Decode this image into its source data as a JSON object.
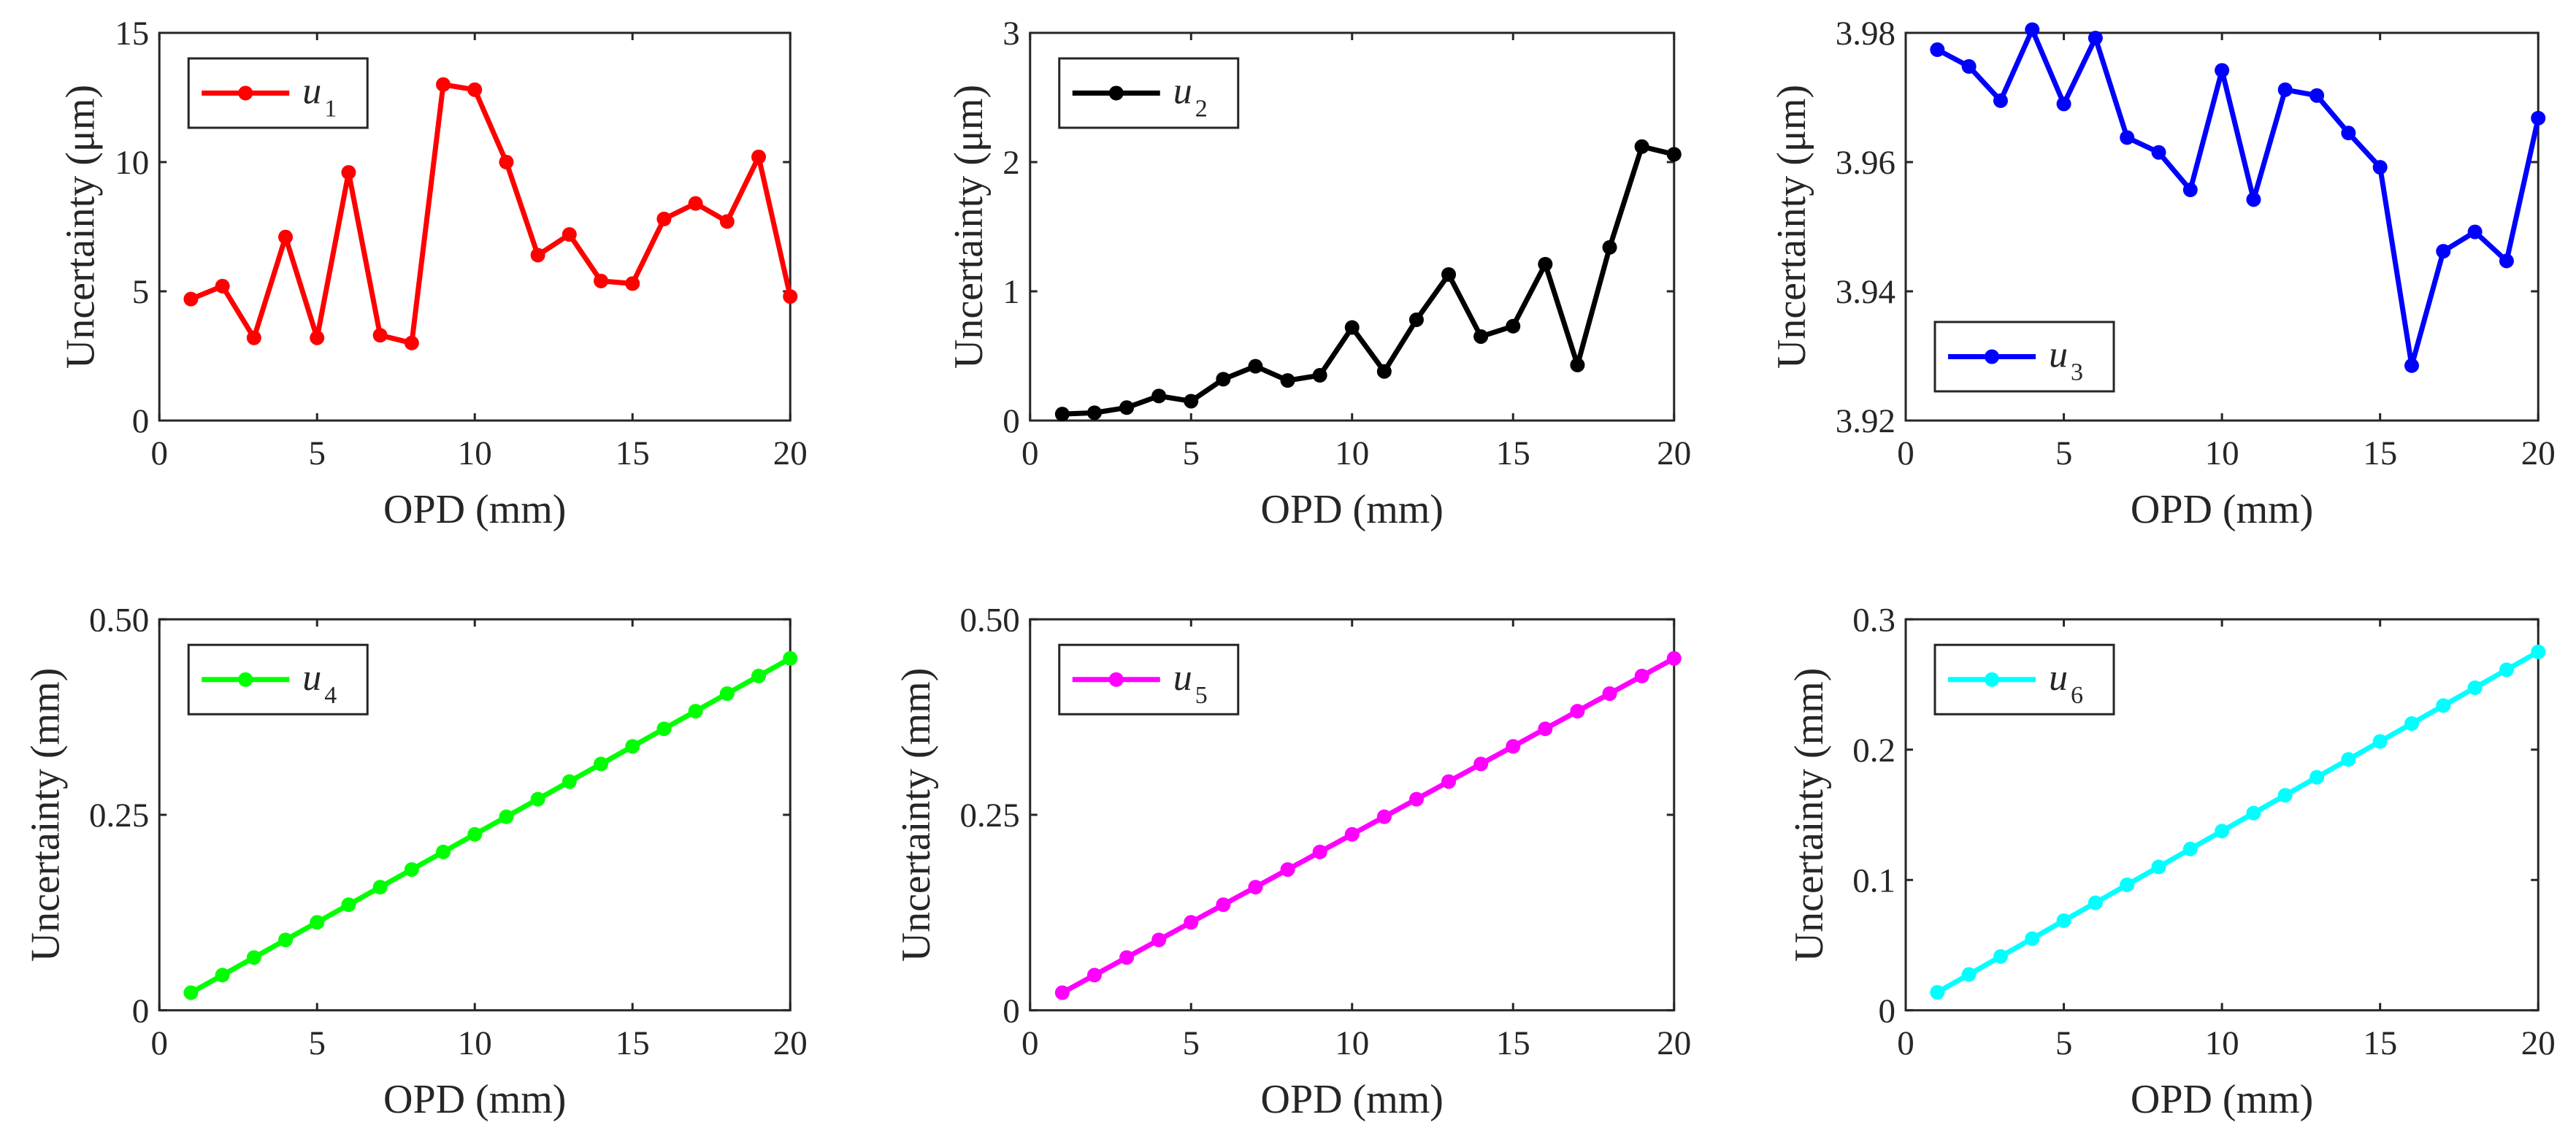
{
  "figure": {
    "xlabel": "OPD (mm)"
  },
  "chart_data": [
    {
      "type": "line",
      "title": "",
      "xlabel": "OPD (mm)",
      "ylabel": "Uncertainty (μm)",
      "xlim": [
        0,
        20
      ],
      "ylim": [
        0,
        15
      ],
      "xticks": [
        0,
        5,
        10,
        15,
        20
      ],
      "xtick_labels": [
        "0",
        "5",
        "10",
        "15",
        "20"
      ],
      "yticks": [
        0,
        5,
        10,
        15
      ],
      "ytick_labels": [
        "0",
        "5",
        "10",
        "15"
      ],
      "legend_position": "top-left",
      "series": [
        {
          "name": "u1",
          "label_main": "u",
          "label_sub": "1",
          "color": "#ff0000",
          "x": [
            1,
            2,
            3,
            4,
            5,
            6,
            7,
            8,
            9,
            10,
            11,
            12,
            13,
            14,
            15,
            16,
            17,
            18,
            19,
            20
          ],
          "values": [
            4.7,
            5.2,
            3.2,
            7.1,
            3.2,
            9.6,
            3.3,
            3.0,
            13.0,
            12.8,
            10.0,
            6.4,
            7.2,
            5.4,
            5.3,
            7.8,
            8.4,
            7.7,
            10.2,
            4.8
          ]
        }
      ]
    },
    {
      "type": "line",
      "title": "",
      "xlabel": "OPD (mm)",
      "ylabel": "Uncertainty (μm)",
      "xlim": [
        0,
        20
      ],
      "ylim": [
        0,
        3
      ],
      "xticks": [
        0,
        5,
        10,
        15,
        20
      ],
      "xtick_labels": [
        "0",
        "5",
        "10",
        "15",
        "20"
      ],
      "yticks": [
        0,
        1,
        2,
        3
      ],
      "ytick_labels": [
        "0",
        "1",
        "2",
        "3"
      ],
      "legend_position": "top-left",
      "series": [
        {
          "name": "u2",
          "label_main": "u",
          "label_sub": "2",
          "color": "#000000",
          "x": [
            1,
            2,
            3,
            4,
            5,
            6,
            7,
            8,
            9,
            10,
            11,
            12,
            13,
            14,
            15,
            16,
            17,
            18,
            19,
            20
          ],
          "values": [
            0.05,
            0.06,
            0.1,
            0.19,
            0.15,
            0.32,
            0.42,
            0.31,
            0.35,
            0.72,
            0.38,
            0.78,
            1.13,
            0.65,
            0.73,
            1.21,
            0.43,
            1.34,
            2.12,
            2.06
          ]
        }
      ]
    },
    {
      "type": "line",
      "title": "",
      "xlabel": "OPD (mm)",
      "ylabel": "Uncertainty (μm)",
      "xlim": [
        0,
        20
      ],
      "ylim": [
        3.92,
        3.98
      ],
      "xticks": [
        0,
        5,
        10,
        15,
        20
      ],
      "xtick_labels": [
        "0",
        "5",
        "10",
        "15",
        "20"
      ],
      "yticks": [
        3.92,
        3.94,
        3.96,
        3.98
      ],
      "ytick_labels": [
        "3.92",
        "3.94",
        "3.96",
        "3.98"
      ],
      "legend_position": "bottom-left",
      "series": [
        {
          "name": "u3",
          "label_main": "u",
          "label_sub": "3",
          "color": "#0000ff",
          "x": [
            1,
            2,
            3,
            4,
            5,
            6,
            7,
            8,
            9,
            10,
            11,
            12,
            13,
            14,
            15,
            16,
            17,
            18,
            19,
            20
          ],
          "values": [
            3.9774,
            3.9748,
            3.9695,
            3.9805,
            3.969,
            3.9792,
            3.9638,
            3.9615,
            3.9557,
            3.9742,
            3.9542,
            3.9712,
            3.9703,
            3.9645,
            3.9592,
            3.9285,
            3.9462,
            3.9492,
            3.9447,
            3.9668
          ]
        }
      ]
    },
    {
      "type": "line",
      "title": "",
      "xlabel": "OPD (mm)",
      "ylabel": "Uncertainty (mm)",
      "xlim": [
        0,
        20
      ],
      "ylim": [
        0,
        0.5
      ],
      "xticks": [
        0,
        5,
        10,
        15,
        20
      ],
      "xtick_labels": [
        "0",
        "5",
        "10",
        "15",
        "20"
      ],
      "yticks": [
        0,
        0.25,
        0.5
      ],
      "ytick_labels": [
        "0",
        "0.25",
        "0.50"
      ],
      "legend_position": "top-left",
      "series": [
        {
          "name": "u4",
          "label_main": "u",
          "label_sub": "4",
          "color": "#00ff00",
          "x": [
            1,
            2,
            3,
            4,
            5,
            6,
            7,
            8,
            9,
            10,
            11,
            12,
            13,
            14,
            15,
            16,
            17,
            18,
            19,
            20
          ],
          "values": [
            0.0225,
            0.045,
            0.0675,
            0.09,
            0.1125,
            0.135,
            0.1575,
            0.18,
            0.2025,
            0.225,
            0.2475,
            0.27,
            0.2925,
            0.315,
            0.3375,
            0.36,
            0.3825,
            0.405,
            0.4275,
            0.45
          ]
        }
      ]
    },
    {
      "type": "line",
      "title": "",
      "xlabel": "OPD (mm)",
      "ylabel": "Uncertainty (mm)",
      "xlim": [
        0,
        20
      ],
      "ylim": [
        0,
        0.5
      ],
      "xticks": [
        0,
        5,
        10,
        15,
        20
      ],
      "xtick_labels": [
        "0",
        "5",
        "10",
        "15",
        "20"
      ],
      "yticks": [
        0,
        0.25,
        0.5
      ],
      "ytick_labels": [
        "0",
        "0.25",
        "0.50"
      ],
      "legend_position": "top-left",
      "series": [
        {
          "name": "u5",
          "label_main": "u",
          "label_sub": "5",
          "color": "#ff00ff",
          "x": [
            1,
            2,
            3,
            4,
            5,
            6,
            7,
            8,
            9,
            10,
            11,
            12,
            13,
            14,
            15,
            16,
            17,
            18,
            19,
            20
          ],
          "values": [
            0.0225,
            0.045,
            0.0675,
            0.09,
            0.1125,
            0.135,
            0.1575,
            0.18,
            0.2025,
            0.225,
            0.2475,
            0.27,
            0.2925,
            0.315,
            0.3375,
            0.36,
            0.3825,
            0.405,
            0.4275,
            0.45
          ]
        }
      ]
    },
    {
      "type": "line",
      "title": "",
      "xlabel": "OPD (mm)",
      "ylabel": "Uncertainty (mm)",
      "xlim": [
        0,
        20
      ],
      "ylim": [
        0,
        0.3
      ],
      "xticks": [
        0,
        5,
        10,
        15,
        20
      ],
      "xtick_labels": [
        "0",
        "5",
        "10",
        "15",
        "20"
      ],
      "yticks": [
        0,
        0.1,
        0.2,
        0.3
      ],
      "ytick_labels": [
        "0",
        "0.1",
        "0.2",
        "0.3"
      ],
      "legend_position": "top-left",
      "series": [
        {
          "name": "u6",
          "label_main": "u",
          "label_sub": "6",
          "color": "#00ffff",
          "x": [
            1,
            2,
            3,
            4,
            5,
            6,
            7,
            8,
            9,
            10,
            11,
            12,
            13,
            14,
            15,
            16,
            17,
            18,
            19,
            20
          ],
          "values": [
            0.0138,
            0.0275,
            0.0413,
            0.055,
            0.0688,
            0.0825,
            0.0963,
            0.11,
            0.1238,
            0.1375,
            0.1513,
            0.165,
            0.1788,
            0.1925,
            0.2063,
            0.22,
            0.2338,
            0.2475,
            0.2613,
            0.275
          ]
        }
      ]
    }
  ]
}
